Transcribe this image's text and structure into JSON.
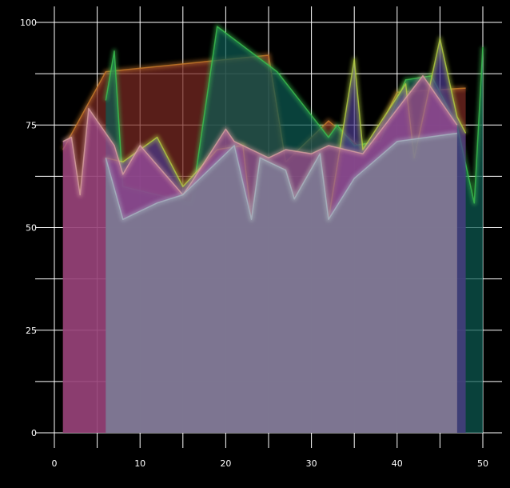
{
  "chart_data": {
    "type": "area",
    "title": "",
    "xlabel": "",
    "ylabel": "",
    "xlim": [
      0,
      50
    ],
    "ylim": [
      0,
      100
    ],
    "x_ticks": [
      0,
      10,
      20,
      30,
      40,
      50
    ],
    "y_ticks": [
      0,
      25,
      50,
      75,
      100
    ],
    "grid": true,
    "background": "#000000",
    "series": [
      {
        "color": "#7a2a22",
        "glow": "#c87a2a",
        "points": [
          [
            1,
            69
          ],
          [
            6,
            88
          ],
          [
            25,
            92
          ],
          [
            27,
            66
          ],
          [
            32,
            76
          ],
          [
            36,
            69
          ],
          [
            37,
            70
          ],
          [
            40,
            83
          ],
          [
            48,
            84
          ]
        ]
      },
      {
        "color": "#0d5a52",
        "glow": "#3cc050",
        "points": [
          [
            6,
            81
          ],
          [
            7,
            93
          ],
          [
            8,
            60
          ],
          [
            16,
            56
          ],
          [
            19,
            99
          ],
          [
            26,
            88
          ],
          [
            32,
            72
          ],
          [
            33,
            75
          ],
          [
            35,
            70
          ],
          [
            38,
            71
          ],
          [
            41,
            86
          ],
          [
            44,
            87
          ],
          [
            47,
            75
          ],
          [
            49,
            56
          ],
          [
            50,
            94
          ]
        ]
      },
      {
        "color": "#4a3a8a",
        "glow": "#b4d040",
        "points": [
          [
            6,
            67
          ],
          [
            8,
            66
          ],
          [
            12,
            72
          ],
          [
            15,
            60
          ],
          [
            19,
            69
          ],
          [
            22,
            70
          ],
          [
            23,
            52
          ],
          [
            24,
            67
          ],
          [
            27,
            64
          ],
          [
            28,
            57
          ],
          [
            31,
            68
          ],
          [
            32,
            52
          ],
          [
            35,
            91
          ],
          [
            36,
            69
          ],
          [
            41,
            85
          ],
          [
            42,
            67
          ],
          [
            45,
            96
          ],
          [
            47,
            77
          ],
          [
            48,
            73
          ]
        ]
      },
      {
        "color": "#a04a90",
        "glow": "#d8a0a0",
        "points": [
          [
            1,
            71
          ],
          [
            2,
            72
          ],
          [
            3,
            58
          ],
          [
            4,
            79
          ],
          [
            7,
            70
          ],
          [
            8,
            63
          ],
          [
            10,
            70
          ],
          [
            15,
            58
          ],
          [
            16,
            61
          ],
          [
            20,
            74
          ],
          [
            21,
            71
          ],
          [
            25,
            67
          ],
          [
            27,
            69
          ],
          [
            30,
            68
          ],
          [
            32,
            70
          ],
          [
            36,
            68
          ],
          [
            43,
            87
          ],
          [
            47,
            75
          ]
        ]
      },
      {
        "color": "#7a8894",
        "glow": "#a8b4c0",
        "points": [
          [
            6,
            67
          ],
          [
            8,
            52
          ],
          [
            12,
            56
          ],
          [
            15,
            58
          ],
          [
            21,
            70
          ],
          [
            23,
            52
          ],
          [
            24,
            67
          ],
          [
            27,
            64
          ],
          [
            28,
            57
          ],
          [
            31,
            68
          ],
          [
            32,
            52
          ],
          [
            35,
            62
          ],
          [
            40,
            71
          ],
          [
            47,
            73
          ]
        ]
      }
    ]
  }
}
